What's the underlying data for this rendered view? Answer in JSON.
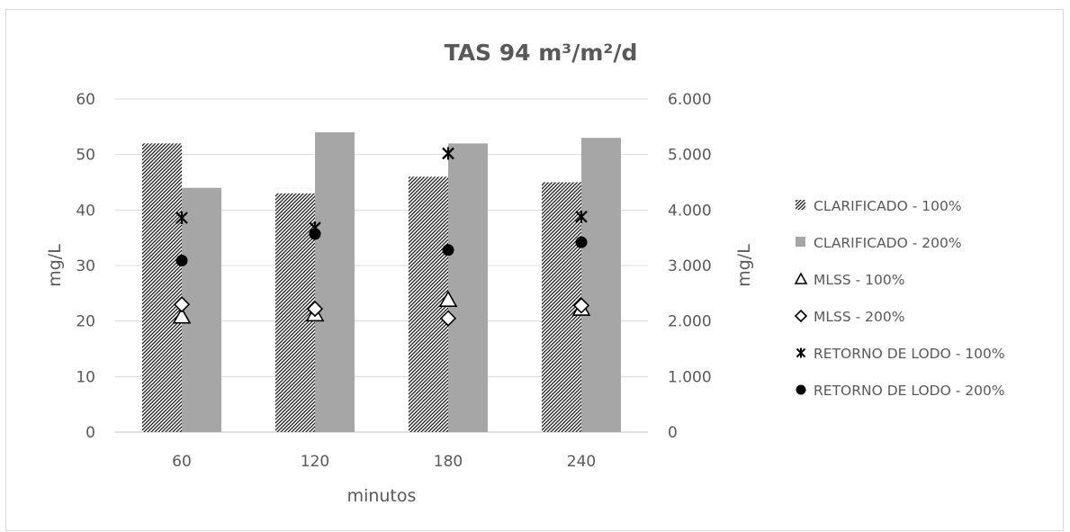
{
  "chart_data": {
    "type": "bar",
    "title": "TAS 94 m³/m²/d",
    "xlabel": "minutos",
    "ylabel": "mg/L",
    "y2label": "mg/L",
    "categories": [
      "60",
      "120",
      "180",
      "240"
    ],
    "ylim": [
      0,
      60
    ],
    "yticks": [
      "0",
      "10",
      "20",
      "30",
      "40",
      "50",
      "60"
    ],
    "y2lim": [
      0,
      6000
    ],
    "y2ticks": [
      "0",
      "1.000",
      "2.000",
      "3.000",
      "4.000",
      "5.000",
      "6.000"
    ],
    "grid": true,
    "legend_position": "right",
    "series": [
      {
        "name": "CLARIFICADO - 100%",
        "kind": "bar",
        "axis": "left",
        "style": "hatched",
        "color": "#000000",
        "values": [
          52,
          43,
          46,
          45
        ]
      },
      {
        "name": "CLARIFICADO - 200%",
        "kind": "bar",
        "axis": "left",
        "style": "solid",
        "color": "#a6a6a6",
        "values": [
          44,
          54,
          52,
          53
        ]
      },
      {
        "name": "MLSS - 100%",
        "kind": "marker",
        "marker": "triangle",
        "axis": "right",
        "color": "#000000",
        "values": [
          2080,
          2120,
          2380,
          2220
        ]
      },
      {
        "name": "MLSS - 200%",
        "kind": "marker",
        "marker": "diamond",
        "axis": "right",
        "color": "#000000",
        "values": [
          2300,
          2220,
          2050,
          2280
        ]
      },
      {
        "name": "RETORNO DE LODO - 100%",
        "kind": "marker",
        "marker": "asterisk",
        "axis": "right",
        "color": "#000000",
        "values": [
          3860,
          3680,
          5020,
          3880
        ]
      },
      {
        "name": "RETORNO DE LODO - 200%",
        "kind": "marker",
        "marker": "circle",
        "axis": "right",
        "color": "#000000",
        "values": [
          3090,
          3570,
          3280,
          3420
        ]
      }
    ]
  }
}
